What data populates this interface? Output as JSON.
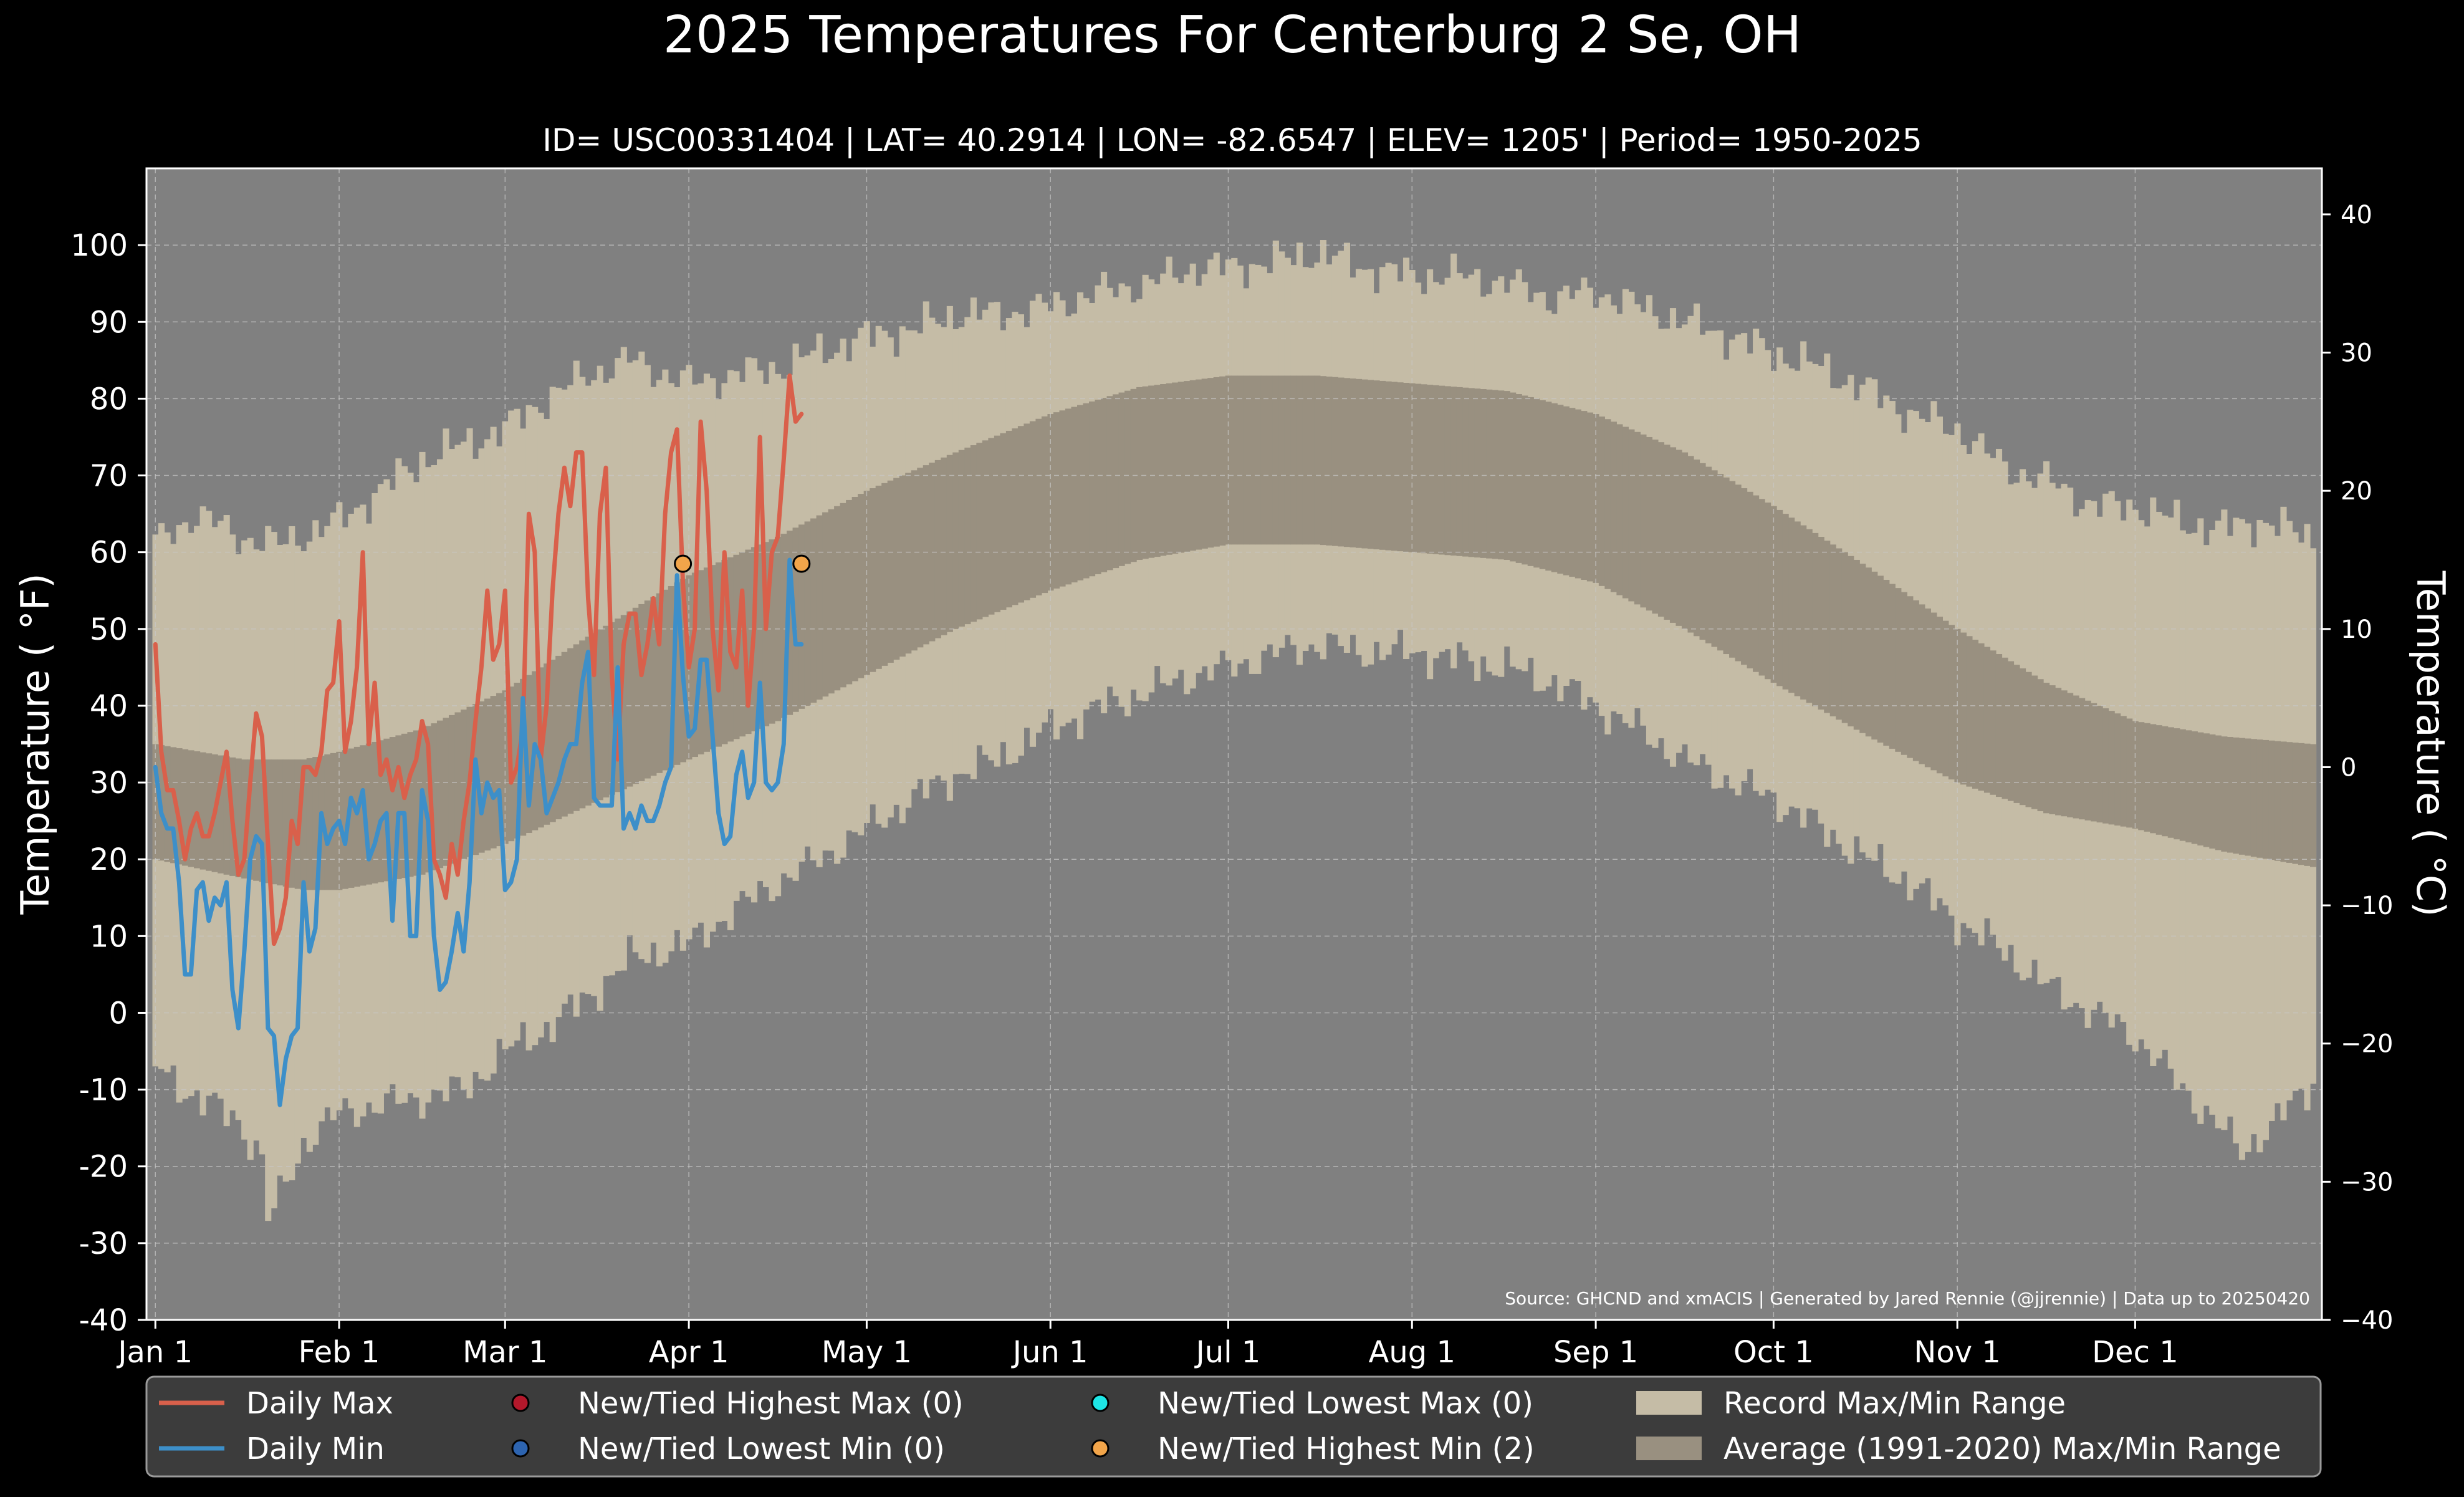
{
  "title": "2025 Temperatures For Centerburg 2 Se, OH",
  "subtitle": "ID= USC00331404 | LAT= 40.2914 | LON= -82.6547 | ELEV= 1205' | Period= 1950-2025",
  "source_note": "Source: GHCND and xmACIS | Generated by Jared Rennie (@jjrennie) | Data up to 20250420",
  "colors": {
    "background": "#000000",
    "plot_bg": "#808080",
    "record_range": "#c5bca6",
    "normal_range": "#999080",
    "daily_max": "#d9604b",
    "daily_min": "#3d8fc9",
    "highest_max_marker": "#b3182b",
    "lowest_min_marker": "#2d64b0",
    "lowest_max_marker": "#1ee6e6",
    "highest_min_marker": "#f2a54a",
    "legend_bg": "#3c3c3c"
  },
  "legend": [
    {
      "label": "Daily Max",
      "kind": "line",
      "color_key": "daily_max"
    },
    {
      "label": "Daily Min",
      "kind": "line",
      "color_key": "daily_min"
    },
    {
      "label": "New/Tied Highest Max (0)",
      "kind": "dot",
      "color_key": "highest_max_marker"
    },
    {
      "label": "New/Tied Lowest Min (0)",
      "kind": "dot",
      "color_key": "lowest_min_marker"
    },
    {
      "label": "New/Tied Lowest Max (0)",
      "kind": "dot",
      "color_key": "lowest_max_marker"
    },
    {
      "label": "New/Tied Highest Min (2)",
      "kind": "dot",
      "color_key": "highest_min_marker"
    },
    {
      "label": "Record Max/Min Range",
      "kind": "patch",
      "color_key": "record_range"
    },
    {
      "label": "Average (1991-2020) Max/Min Range",
      "kind": "patch",
      "color_key": "normal_range"
    }
  ],
  "chart_data": {
    "type": "area",
    "title": "2025 Temperatures For Centerburg 2 Se, OH",
    "subtitle": "ID= USC00331404 | LAT= 40.2914 | LON= -82.6547 | ELEV= 1205' | Period= 1950-2025",
    "ylabel": "Temperature ($^\\circ$F)",
    "ylabel_right": "Temperature ($^\\circ$C)",
    "ylabel_display": "Temperature ( °F)",
    "ylabel_right_display": "Temperature ( °C)",
    "ylim": [
      -40,
      110
    ],
    "ylim_right_c": [
      -40,
      43.33
    ],
    "xlim_day": [
      -1.5,
      365.5
    ],
    "yticks": [
      "-40",
      "-30",
      "-20",
      "-10",
      "0",
      "10",
      "20",
      "30",
      "40",
      "50",
      "60",
      "70",
      "80",
      "90",
      "100"
    ],
    "ytick_values": [
      -40,
      -30,
      -20,
      -10,
      0,
      10,
      20,
      30,
      40,
      50,
      60,
      70,
      80,
      90,
      100
    ],
    "yticks_right": [
      "−40",
      "−30",
      "−20",
      "−10",
      "0",
      "10",
      "20",
      "30",
      "40"
    ],
    "ytick_right_values_c": [
      -40,
      -30,
      -20,
      -10,
      0,
      10,
      20,
      30,
      40
    ],
    "xticks": [
      "Jan 1",
      "Feb 1",
      "Mar 1",
      "Apr 1",
      "May 1",
      "Jun 1",
      "Jul 1",
      "Aug 1",
      "Sep 1",
      "Oct 1",
      "Nov 1",
      "Dec 1"
    ],
    "xtick_days": [
      0,
      31,
      59,
      90,
      120,
      151,
      181,
      212,
      243,
      273,
      304,
      334
    ],
    "grid": true,
    "legend_position": "bottom",
    "record_max_knots": [
      [
        0,
        61
      ],
      [
        7,
        65
      ],
      [
        14,
        62
      ],
      [
        21,
        61
      ],
      [
        31,
        64
      ],
      [
        38,
        68
      ],
      [
        45,
        72
      ],
      [
        52,
        74
      ],
      [
        59,
        76
      ],
      [
        66,
        80
      ],
      [
        73,
        83
      ],
      [
        80,
        85
      ],
      [
        90,
        82
      ],
      [
        97,
        83
      ],
      [
        105,
        84
      ],
      [
        112,
        86
      ],
      [
        120,
        88
      ],
      [
        128,
        89
      ],
      [
        135,
        91
      ],
      [
        142,
        91
      ],
      [
        151,
        92
      ],
      [
        160,
        94
      ],
      [
        168,
        95
      ],
      [
        175,
        97
      ],
      [
        181,
        97
      ],
      [
        190,
        98
      ],
      [
        196,
        99
      ],
      [
        204,
        97
      ],
      [
        212,
        96
      ],
      [
        220,
        96
      ],
      [
        228,
        95
      ],
      [
        236,
        93
      ],
      [
        243,
        94
      ],
      [
        250,
        92
      ],
      [
        258,
        90
      ],
      [
        266,
        88
      ],
      [
        273,
        86
      ],
      [
        281,
        84
      ],
      [
        289,
        81
      ],
      [
        296,
        78
      ],
      [
        304,
        76
      ],
      [
        312,
        71
      ],
      [
        320,
        69
      ],
      [
        327,
        66
      ],
      [
        334,
        66
      ],
      [
        341,
        64
      ],
      [
        348,
        63
      ],
      [
        355,
        64
      ],
      [
        364,
        62
      ]
    ],
    "record_min_knots": [
      [
        0,
        -7
      ],
      [
        7,
        -11
      ],
      [
        14,
        -14
      ],
      [
        18,
        -19
      ],
      [
        19,
        -27
      ],
      [
        21,
        -24
      ],
      [
        25,
        -17
      ],
      [
        31,
        -13
      ],
      [
        38,
        -12
      ],
      [
        45,
        -11
      ],
      [
        52,
        -10
      ],
      [
        59,
        -5
      ],
      [
        66,
        -2
      ],
      [
        73,
        2
      ],
      [
        80,
        7
      ],
      [
        90,
        9
      ],
      [
        97,
        13
      ],
      [
        105,
        17
      ],
      [
        112,
        20
      ],
      [
        120,
        24
      ],
      [
        128,
        28
      ],
      [
        135,
        31
      ],
      [
        142,
        33
      ],
      [
        151,
        37
      ],
      [
        160,
        40
      ],
      [
        168,
        42
      ],
      [
        175,
        44
      ],
      [
        181,
        45
      ],
      [
        190,
        47
      ],
      [
        196,
        48
      ],
      [
        204,
        47
      ],
      [
        212,
        47
      ],
      [
        220,
        46
      ],
      [
        228,
        45
      ],
      [
        236,
        43
      ],
      [
        243,
        40
      ],
      [
        250,
        37
      ],
      [
        258,
        33
      ],
      [
        266,
        30
      ],
      [
        273,
        28
      ],
      [
        281,
        24
      ],
      [
        289,
        20
      ],
      [
        296,
        17
      ],
      [
        304,
        12
      ],
      [
        312,
        8
      ],
      [
        320,
        3
      ],
      [
        327,
        0
      ],
      [
        334,
        -3
      ],
      [
        341,
        -9
      ],
      [
        346,
        -13
      ],
      [
        352,
        -18
      ],
      [
        358,
        -14
      ],
      [
        364,
        -9
      ]
    ],
    "normal_max": [
      [
        0,
        35
      ],
      [
        15,
        33
      ],
      [
        25,
        33
      ],
      [
        31,
        34
      ],
      [
        45,
        37
      ],
      [
        59,
        42
      ],
      [
        73,
        49
      ],
      [
        90,
        57
      ],
      [
        105,
        62
      ],
      [
        120,
        68
      ],
      [
        135,
        73
      ],
      [
        151,
        78
      ],
      [
        166,
        81.5
      ],
      [
        181,
        83
      ],
      [
        196,
        83
      ],
      [
        212,
        82
      ],
      [
        228,
        81
      ],
      [
        243,
        78
      ],
      [
        258,
        73
      ],
      [
        273,
        66
      ],
      [
        289,
        58
      ],
      [
        304,
        50
      ],
      [
        319,
        43
      ],
      [
        334,
        38
      ],
      [
        349,
        36
      ],
      [
        364,
        35
      ]
    ],
    "normal_min": [
      [
        0,
        20
      ],
      [
        15,
        17.5
      ],
      [
        25,
        16
      ],
      [
        31,
        16
      ],
      [
        45,
        18
      ],
      [
        59,
        22
      ],
      [
        73,
        27
      ],
      [
        90,
        33
      ],
      [
        105,
        38
      ],
      [
        120,
        44
      ],
      [
        135,
        50
      ],
      [
        151,
        55
      ],
      [
        166,
        59
      ],
      [
        181,
        61
      ],
      [
        196,
        61
      ],
      [
        212,
        60
      ],
      [
        228,
        59
      ],
      [
        243,
        56
      ],
      [
        258,
        50
      ],
      [
        273,
        43
      ],
      [
        289,
        36
      ],
      [
        304,
        30
      ],
      [
        319,
        26
      ],
      [
        334,
        24
      ],
      [
        349,
        21
      ],
      [
        364,
        19
      ]
    ],
    "series": [
      {
        "name": "Daily Max",
        "x_day": [
          0,
          1,
          2,
          3,
          4,
          5,
          6,
          7,
          8,
          9,
          10,
          11,
          12,
          13,
          14,
          15,
          16,
          17,
          18,
          19,
          20,
          21,
          22,
          23,
          24,
          25,
          26,
          27,
          28,
          29,
          30,
          31,
          32,
          33,
          34,
          35,
          36,
          37,
          38,
          39,
          40,
          41,
          42,
          43,
          44,
          45,
          46,
          47,
          48,
          49,
          50,
          51,
          52,
          53,
          54,
          55,
          56,
          57,
          58,
          59,
          60,
          61,
          62,
          63,
          64,
          65,
          66,
          67,
          68,
          69,
          70,
          71,
          72,
          73,
          74,
          75,
          76,
          77,
          78,
          79,
          80,
          81,
          82,
          83,
          84,
          85,
          86,
          87,
          88,
          89,
          90,
          91,
          92,
          93,
          94,
          95,
          96,
          97,
          98,
          99,
          100,
          101,
          102,
          103,
          104,
          105,
          106,
          107,
          108,
          109
        ],
        "y": [
          48,
          34,
          29,
          29,
          25,
          20,
          24,
          26,
          23,
          23,
          26,
          30,
          34,
          25,
          18,
          20,
          30,
          39,
          36,
          22,
          9,
          11,
          15,
          25,
          22,
          32,
          32,
          31,
          34,
          42,
          43,
          51,
          34,
          38,
          45,
          60,
          35,
          43,
          31,
          33,
          29,
          32,
          28,
          31,
          33,
          38,
          35,
          20,
          18,
          15,
          22,
          18,
          25,
          30,
          38,
          45,
          55,
          46,
          48,
          55,
          30,
          32,
          37,
          65,
          60,
          33,
          40,
          55,
          65,
          71,
          66,
          73,
          73,
          54,
          44,
          65,
          71,
          44,
          33,
          48,
          52,
          52,
          44,
          48,
          54,
          48,
          65,
          73,
          76,
          56,
          45,
          50,
          77,
          68,
          50,
          42,
          60,
          47,
          45,
          55,
          40,
          50,
          75,
          50,
          60,
          62,
          72,
          83,
          77,
          78
        ]
      },
      {
        "name": "Daily Min",
        "x_day": [
          0,
          1,
          2,
          3,
          4,
          5,
          6,
          7,
          8,
          9,
          10,
          11,
          12,
          13,
          14,
          15,
          16,
          17,
          18,
          19,
          20,
          21,
          22,
          23,
          24,
          25,
          26,
          27,
          28,
          29,
          30,
          31,
          32,
          33,
          34,
          35,
          36,
          37,
          38,
          39,
          40,
          41,
          42,
          43,
          44,
          45,
          46,
          47,
          48,
          49,
          50,
          51,
          52,
          53,
          54,
          55,
          56,
          57,
          58,
          59,
          60,
          61,
          62,
          63,
          64,
          65,
          66,
          67,
          68,
          69,
          70,
          71,
          72,
          73,
          74,
          75,
          76,
          77,
          78,
          79,
          80,
          81,
          82,
          83,
          84,
          85,
          86,
          87,
          88,
          89,
          90,
          91,
          92,
          93,
          94,
          95,
          96,
          97,
          98,
          99,
          100,
          101,
          102,
          103,
          104,
          105,
          106,
          107,
          108,
          109
        ],
        "y": [
          32,
          26,
          24,
          24,
          17,
          5,
          5,
          16,
          17,
          12,
          15,
          14,
          17,
          3,
          -2,
          8,
          20,
          23,
          22,
          -2,
          -3,
          -12,
          -6,
          -3,
          -2,
          17,
          8,
          11,
          26,
          22,
          24,
          25,
          22,
          28,
          26,
          29,
          20,
          22,
          25,
          26,
          12,
          26,
          26,
          10,
          10,
          29,
          25,
          10,
          3,
          4,
          8,
          13,
          8,
          17,
          33,
          26,
          30,
          28,
          29,
          16,
          17,
          20,
          41,
          27,
          35,
          33,
          26,
          28,
          30,
          33,
          35,
          35,
          43,
          47,
          28,
          27,
          27,
          27,
          45,
          24,
          26,
          24,
          27,
          25,
          25,
          27,
          30,
          32,
          57,
          44,
          36,
          37,
          46,
          46,
          36,
          26,
          22,
          23,
          31,
          34,
          28,
          30,
          43,
          30,
          29,
          30,
          35,
          59,
          48,
          48
        ]
      }
    ],
    "markers": {
      "highest_min": [
        [
          89,
          58.5
        ],
        [
          109,
          58.5
        ]
      ],
      "highest_max": [],
      "lowest_min": [],
      "lowest_max": []
    }
  }
}
